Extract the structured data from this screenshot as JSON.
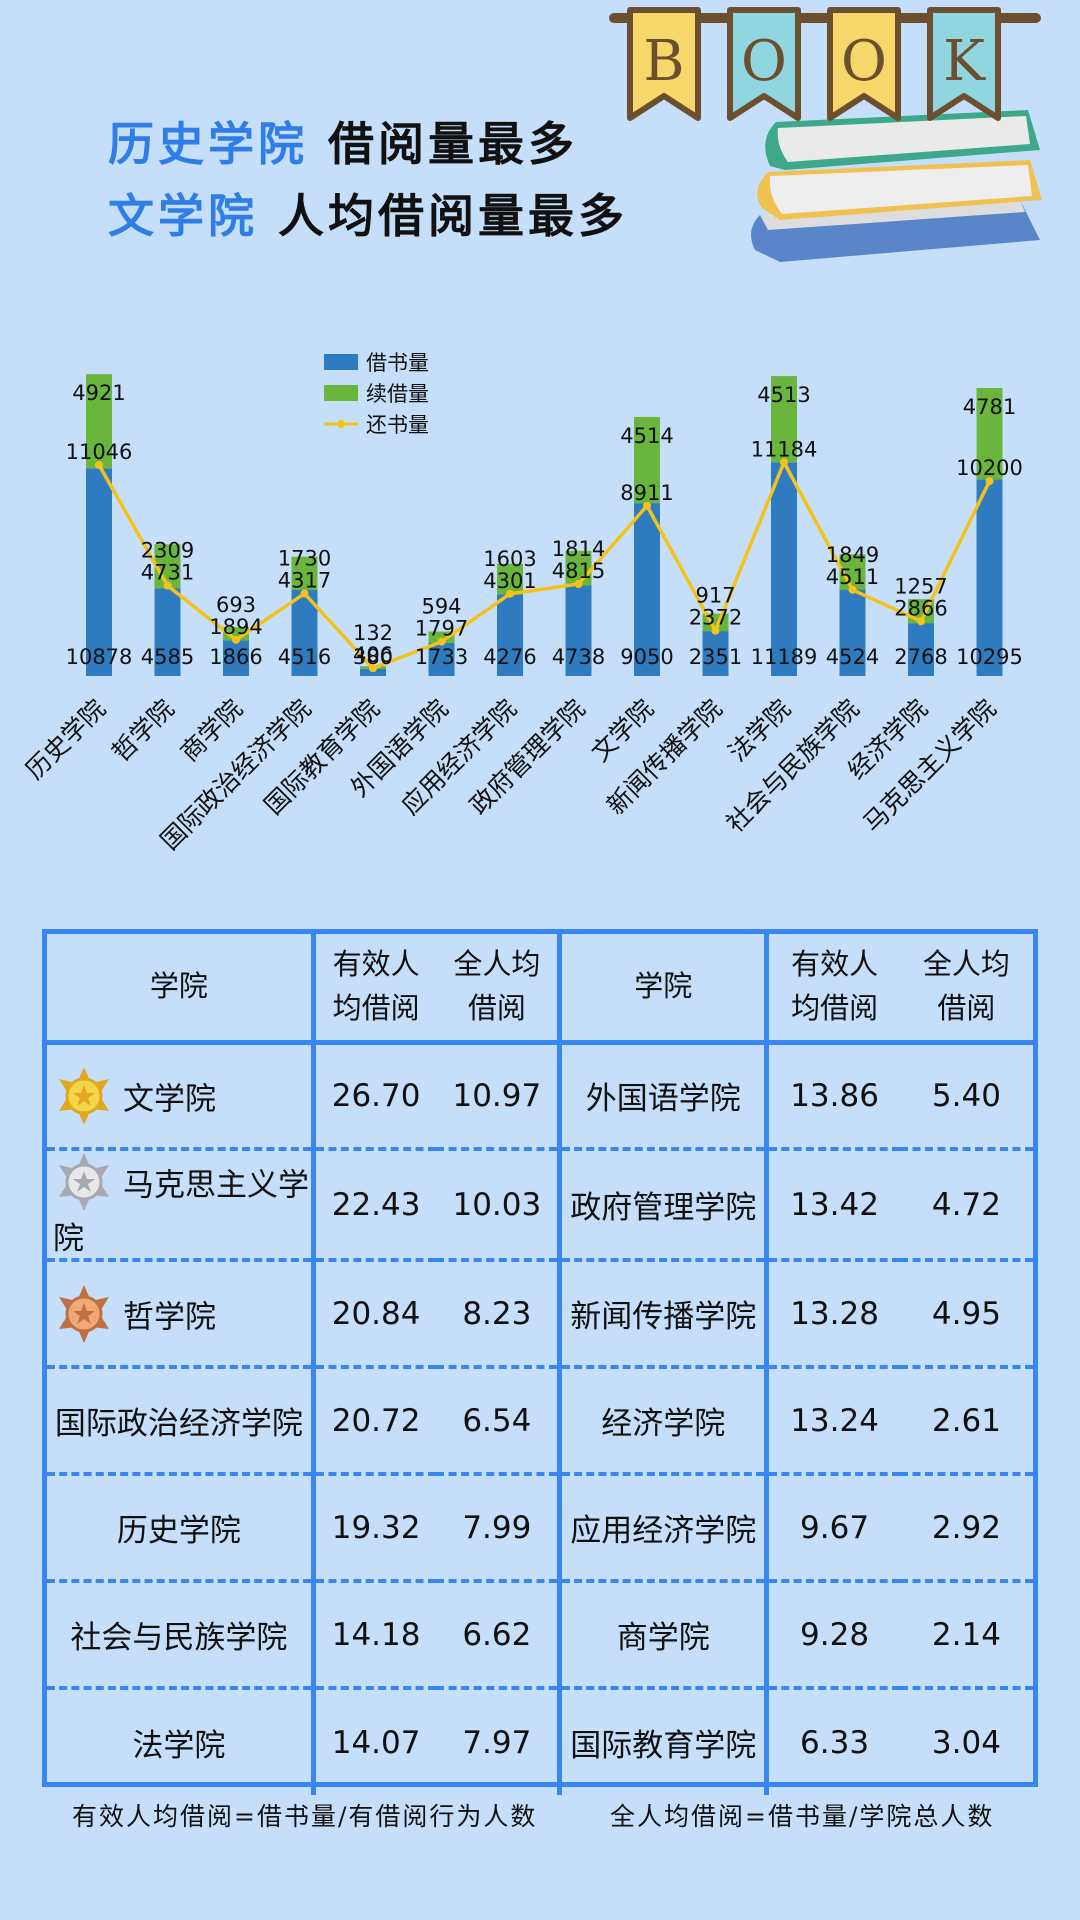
{
  "headlines": [
    {
      "accent": "历史学院",
      "rest": "借阅量最多"
    },
    {
      "accent": "文学院",
      "rest": "人均借阅量最多"
    }
  ],
  "decoration": {
    "banner_letters": [
      "B",
      "O",
      "O",
      "K"
    ],
    "icon": "stack-of-books"
  },
  "colors": {
    "borrow": "#2e7cbf",
    "renew": "#6ab53b",
    "return": "#f5c21b",
    "accent": "#2f7de6",
    "table_border": "#3a86f0"
  },
  "chart_data": {
    "type": "bar",
    "stacked": true,
    "categories": [
      "历史学院",
      "哲学院",
      "商学院",
      "国际政治经济学院",
      "国际教育学院",
      "外国语学院",
      "应用经济学院",
      "政府管理学院",
      "文学院",
      "新闻传播学院",
      "法学院",
      "社会与民族学院",
      "经济学院",
      "马克思主义学院"
    ],
    "series": [
      {
        "name": "借书量",
        "kind": "bar",
        "values": [
          10878,
          4585,
          1866,
          4516,
          380,
          1733,
          4276,
          4738,
          9050,
          2351,
          11189,
          4524,
          2768,
          10295
        ]
      },
      {
        "name": "续借量",
        "kind": "bar",
        "values": [
          4921,
          2309,
          693,
          1730,
          132,
          594,
          1603,
          1814,
          4514,
          917,
          4513,
          1849,
          1257,
          4781
        ]
      },
      {
        "name": "还书量",
        "kind": "line",
        "values": [
          11046,
          4731,
          1894,
          4317,
          406,
          1797,
          4301,
          4815,
          8911,
          2372,
          11184,
          4511,
          2866,
          10200
        ]
      }
    ],
    "legend_position": "top-left",
    "grid": false,
    "ylim": [
      0,
      16000
    ]
  },
  "table": {
    "headers": {
      "college": "学院",
      "effective": [
        "有效人",
        "均借阅"
      ],
      "overall": [
        "全人均",
        "借阅"
      ]
    },
    "rows": [
      {
        "left": {
          "name": "文学院",
          "medal": "gold-medal",
          "effective": "26.70",
          "overall": "10.97"
        },
        "right": {
          "name": "外国语学院",
          "effective": "13.86",
          "overall": "5.40"
        }
      },
      {
        "left": {
          "name": "马克思主义学院",
          "medal": "silver-medal",
          "effective": "22.43",
          "overall": "10.03"
        },
        "right": {
          "name": "政府管理学院",
          "effective": "13.42",
          "overall": "4.72"
        }
      },
      {
        "left": {
          "name": "哲学院",
          "medal": "bronze-medal",
          "effective": "20.84",
          "overall": "8.23"
        },
        "right": {
          "name": "新闻传播学院",
          "effective": "13.28",
          "overall": "4.95"
        }
      },
      {
        "left": {
          "name": "国际政治经济学院",
          "effective": "20.72",
          "overall": "6.54"
        },
        "right": {
          "name": "经济学院",
          "effective": "13.24",
          "overall": "2.61"
        }
      },
      {
        "left": {
          "name": "历史学院",
          "effective": "19.32",
          "overall": "7.99"
        },
        "right": {
          "name": "应用经济学院",
          "effective": "9.67",
          "overall": "2.92"
        }
      },
      {
        "left": {
          "name": "社会与民族学院",
          "effective": "14.18",
          "overall": "6.62"
        },
        "right": {
          "name": "商学院",
          "effective": "9.28",
          "overall": "2.14"
        }
      },
      {
        "left": {
          "name": "法学院",
          "effective": "14.07",
          "overall": "7.97"
        },
        "right": {
          "name": "国际教育学院",
          "effective": "6.33",
          "overall": "3.04"
        }
      }
    ]
  },
  "footnotes": [
    "有效人均借阅=借书量/有借阅行为人数",
    "全人均借阅=借书量/学院总人数"
  ]
}
